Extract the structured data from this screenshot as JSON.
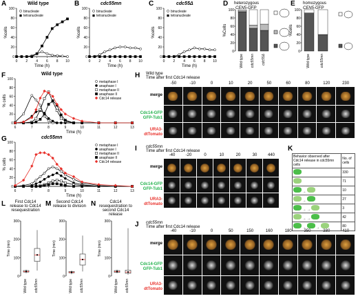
{
  "panels": {
    "A": {
      "letter": "A",
      "title": "Wild type",
      "legend": [
        "binucleate",
        "tetranucleate"
      ],
      "ylabel": "%cells",
      "xlabel": "Time (h)"
    },
    "B": {
      "letter": "B",
      "title": "cdc55mn",
      "legend": [
        "binucleate",
        "tetranucleate"
      ],
      "ylabel": "%cells",
      "xlabel": "Time (h)"
    },
    "C": {
      "letter": "C",
      "title": "cdc55Δ",
      "legend": [
        "binucleate",
        "tetranucleate"
      ],
      "ylabel": "%cells",
      "xlabel": "Time (h)"
    },
    "D": {
      "letter": "D",
      "title1": "heterozygous",
      "title2": "CEN5-GFP",
      "ylabel": "%Cells",
      "cats": [
        "Wild type",
        "cdc55mn",
        "cdc55Δ"
      ]
    },
    "E": {
      "letter": "E",
      "title1": "homozygous",
      "title2": "CEN5-GFP",
      "ylabel": "%cells",
      "cats": [
        "Wild type",
        "cdc55mn"
      ]
    },
    "F": {
      "letter": "F",
      "title": "Wild type",
      "legend": [
        "metaphase I",
        "anaphase I",
        "metaphase II",
        "anaphase II",
        "Cdc14 release"
      ],
      "ylabel": "% cells",
      "xlabel": "Time (h)"
    },
    "G": {
      "letter": "G",
      "title": "cdc55mn",
      "legend": [
        "metaphase I",
        "anaphase I",
        "metaphase II",
        "anaphase II",
        "Cdc14 release"
      ],
      "ylabel": "% cells",
      "xlabel": "Time (h)"
    },
    "H": {
      "letter": "H",
      "title": "Wild type",
      "subtitle": "Time after first Cdc14 release",
      "times": [
        "-50",
        "-10",
        "0",
        "10",
        "20",
        "50",
        "60",
        "80",
        "120",
        "230"
      ]
    },
    "I": {
      "letter": "I",
      "title": "cdc55mn",
      "subtitle": "Time after first Cdc14 release",
      "times": [
        "-40",
        "-20",
        "0",
        "10",
        "20",
        "30",
        "440"
      ]
    },
    "J": {
      "letter": "J",
      "title": "cdc55mn",
      "subtitle": "Time after first Cdc14 release",
      "times": [
        "-40",
        "-10",
        "0",
        "50",
        "150",
        "160",
        "180",
        "350",
        "380",
        "410"
      ]
    },
    "K": {
      "letter": "K",
      "header1": "Behavior observed after Cdc14 release in cdc55mn cells",
      "header2": "No. of cells",
      "counts": [
        "330",
        "71",
        "10",
        "27",
        "3",
        "42",
        "80"
      ]
    },
    "L": {
      "letter": "L",
      "title": "First Cdc14 release to Cdc14 resequestration",
      "ylabel": "Time (min)",
      "cats": [
        "Wild type",
        "cdc55mn"
      ]
    },
    "M": {
      "letter": "M",
      "title": "Second Cdc14 release to division",
      "ylabel": "Time (min)",
      "cats": [
        "Wild type",
        "cdc55mn"
      ]
    },
    "N": {
      "letter": "N",
      "title": "Cdc14 resequestration to second Cdc14 release",
      "ylabel": "Time (min)",
      "cats": [
        "Wild type",
        "cdc55mn"
      ]
    }
  },
  "rowlabels": {
    "merge": "merge",
    "gfp1": "Cdc14-GFP",
    "gfp2": "GFP-Tub1",
    "ura1": "URA3-",
    "ura2": "dtTomato"
  },
  "colors": {
    "green": "#22b24c",
    "red": "#e8302a",
    "diamond": "#e8302a"
  },
  "chart_data": [
    {
      "type": "line",
      "panel": "A",
      "x": [
        0,
        1,
        2,
        3,
        4,
        5,
        6,
        7,
        8,
        9,
        10
      ],
      "series": [
        {
          "name": "binucleate",
          "values": [
            0,
            0,
            0,
            2,
            6,
            10,
            6,
            3,
            2,
            1,
            0
          ]
        },
        {
          "name": "tetranucleate",
          "values": [
            0,
            0,
            0,
            0,
            6,
            22,
            40,
            58,
            66,
            72,
            78
          ]
        }
      ],
      "xlim": [
        0,
        10
      ],
      "ylim": [
        0,
        100
      ]
    },
    {
      "type": "line",
      "panel": "B",
      "x": [
        0,
        1,
        2,
        3,
        4,
        5,
        6,
        7,
        8,
        9,
        10
      ],
      "series": [
        {
          "name": "binucleate",
          "values": [
            0,
            0,
            4,
            10,
            14,
            18,
            20,
            20,
            18,
            18,
            16
          ]
        },
        {
          "name": "tetranucleate",
          "values": [
            0,
            0,
            0,
            0,
            0,
            0,
            0,
            0,
            0,
            0,
            0
          ]
        }
      ],
      "xlim": [
        0,
        10
      ],
      "ylim": [
        0,
        100
      ]
    },
    {
      "type": "line",
      "panel": "C",
      "x": [
        0,
        1,
        2,
        3,
        4,
        5,
        6,
        7,
        8,
        9,
        10
      ],
      "series": [
        {
          "name": "binucleate",
          "values": [
            0,
            0,
            0,
            4,
            10,
            14,
            18,
            16,
            16,
            14,
            14
          ]
        },
        {
          "name": "tetranucleate",
          "values": [
            0,
            0,
            0,
            0,
            0,
            0,
            0,
            0,
            0,
            0,
            0
          ]
        }
      ],
      "xlim": [
        0,
        10
      ],
      "ylim": [
        0,
        100
      ]
    },
    {
      "type": "bar",
      "panel": "D",
      "categories": [
        "Wild type",
        "cdc55mn",
        "cdc55Δ"
      ],
      "series": [
        {
          "values": [
            95,
            55,
            50
          ]
        },
        {
          "values": [
            2,
            8,
            15
          ]
        },
        {
          "values": [
            3,
            37,
            35
          ]
        }
      ],
      "ylim": [
        0,
        100
      ]
    },
    {
      "type": "bar",
      "panel": "E",
      "categories": [
        "Wild type",
        "cdc55mn"
      ],
      "series": [
        {
          "values": [
            92,
            40
          ]
        },
        {
          "values": [
            8,
            60
          ]
        }
      ],
      "ylim": [
        0,
        100
      ]
    },
    {
      "type": "line",
      "panel": "F",
      "x": [
        6,
        6.5,
        7,
        7.25,
        7.5,
        7.75,
        8,
        8.25,
        8.5,
        8.75,
        9,
        9.5,
        10,
        11,
        12,
        13
      ],
      "series": [
        {
          "name": "metaphase I",
          "values": [
            2,
            20,
            62,
            52,
            40,
            15,
            5,
            0,
            0,
            0,
            0,
            0,
            0,
            0,
            0,
            0
          ]
        },
        {
          "name": "anaphase I",
          "values": [
            0,
            2,
            15,
            25,
            28,
            22,
            10,
            4,
            0,
            0,
            0,
            0,
            0,
            0,
            0,
            0
          ]
        },
        {
          "name": "metaphase II",
          "values": [
            0,
            0,
            2,
            10,
            30,
            55,
            70,
            48,
            28,
            10,
            4,
            0,
            0,
            0,
            0,
            0
          ]
        },
        {
          "name": "anaphase II",
          "values": [
            0,
            0,
            0,
            2,
            8,
            20,
            42,
            50,
            40,
            18,
            6,
            0,
            0,
            0,
            0,
            0
          ]
        },
        {
          "name": "Cdc14 release",
          "values": [
            0,
            2,
            12,
            30,
            56,
            72,
            68,
            60,
            42,
            30,
            20,
            10,
            4,
            0,
            0,
            0
          ]
        }
      ],
      "xlim": [
        6,
        13
      ],
      "ylim": [
        0,
        100
      ]
    },
    {
      "type": "line",
      "panel": "G",
      "x": [
        6,
        6.5,
        7,
        7.25,
        7.5,
        7.75,
        8,
        8.25,
        8.5,
        8.75,
        9,
        9.5,
        10,
        11,
        12,
        13
      ],
      "series": [
        {
          "name": "metaphase I",
          "values": [
            0,
            2,
            6,
            14,
            22,
            30,
            40,
            44,
            40,
            34,
            26,
            16,
            8,
            2,
            0,
            0
          ]
        },
        {
          "name": "anaphase I",
          "values": [
            0,
            0,
            2,
            6,
            10,
            16,
            22,
            26,
            30,
            24,
            18,
            8,
            4,
            0,
            0,
            0
          ]
        },
        {
          "name": "metaphase II",
          "values": [
            0,
            0,
            0,
            0,
            2,
            4,
            8,
            12,
            14,
            12,
            8,
            4,
            2,
            0,
            0,
            0
          ]
        },
        {
          "name": "anaphase II",
          "values": [
            0,
            0,
            0,
            0,
            0,
            2,
            4,
            6,
            6,
            4,
            2,
            0,
            0,
            0,
            0,
            0
          ]
        },
        {
          "name": "Cdc14 release",
          "values": [
            2,
            14,
            46,
            72,
            76,
            76,
            72,
            64,
            50,
            40,
            30,
            22,
            10,
            4,
            2,
            0
          ]
        }
      ],
      "xlim": [
        6,
        13
      ],
      "ylim": [
        0,
        100
      ]
    },
    {
      "type": "box",
      "panel": "L",
      "categories": [
        "Wild type",
        "cdc55mn"
      ],
      "median": [
        25,
        115
      ],
      "q1": [
        22,
        80
      ],
      "q3": [
        30,
        150
      ],
      "min": [
        15,
        30
      ],
      "max": [
        35,
        250
      ],
      "ylim": [
        0,
        300
      ]
    },
    {
      "type": "box",
      "panel": "M",
      "categories": [
        "Wild type",
        "cdc55mn"
      ],
      "median": [
        20,
        90
      ],
      "q1": [
        18,
        60
      ],
      "q3": [
        25,
        120
      ],
      "min": [
        10,
        25
      ],
      "max": [
        30,
        220
      ],
      "ylim": [
        0,
        300
      ]
    },
    {
      "type": "box",
      "panel": "N",
      "categories": [
        "Wild type",
        "cdc55mn"
      ],
      "median": [
        25,
        22
      ],
      "q1": [
        20,
        15
      ],
      "q3": [
        30,
        32
      ],
      "min": [
        15,
        8
      ],
      "max": [
        35,
        260
      ],
      "ylim": [
        0,
        300
      ]
    }
  ]
}
